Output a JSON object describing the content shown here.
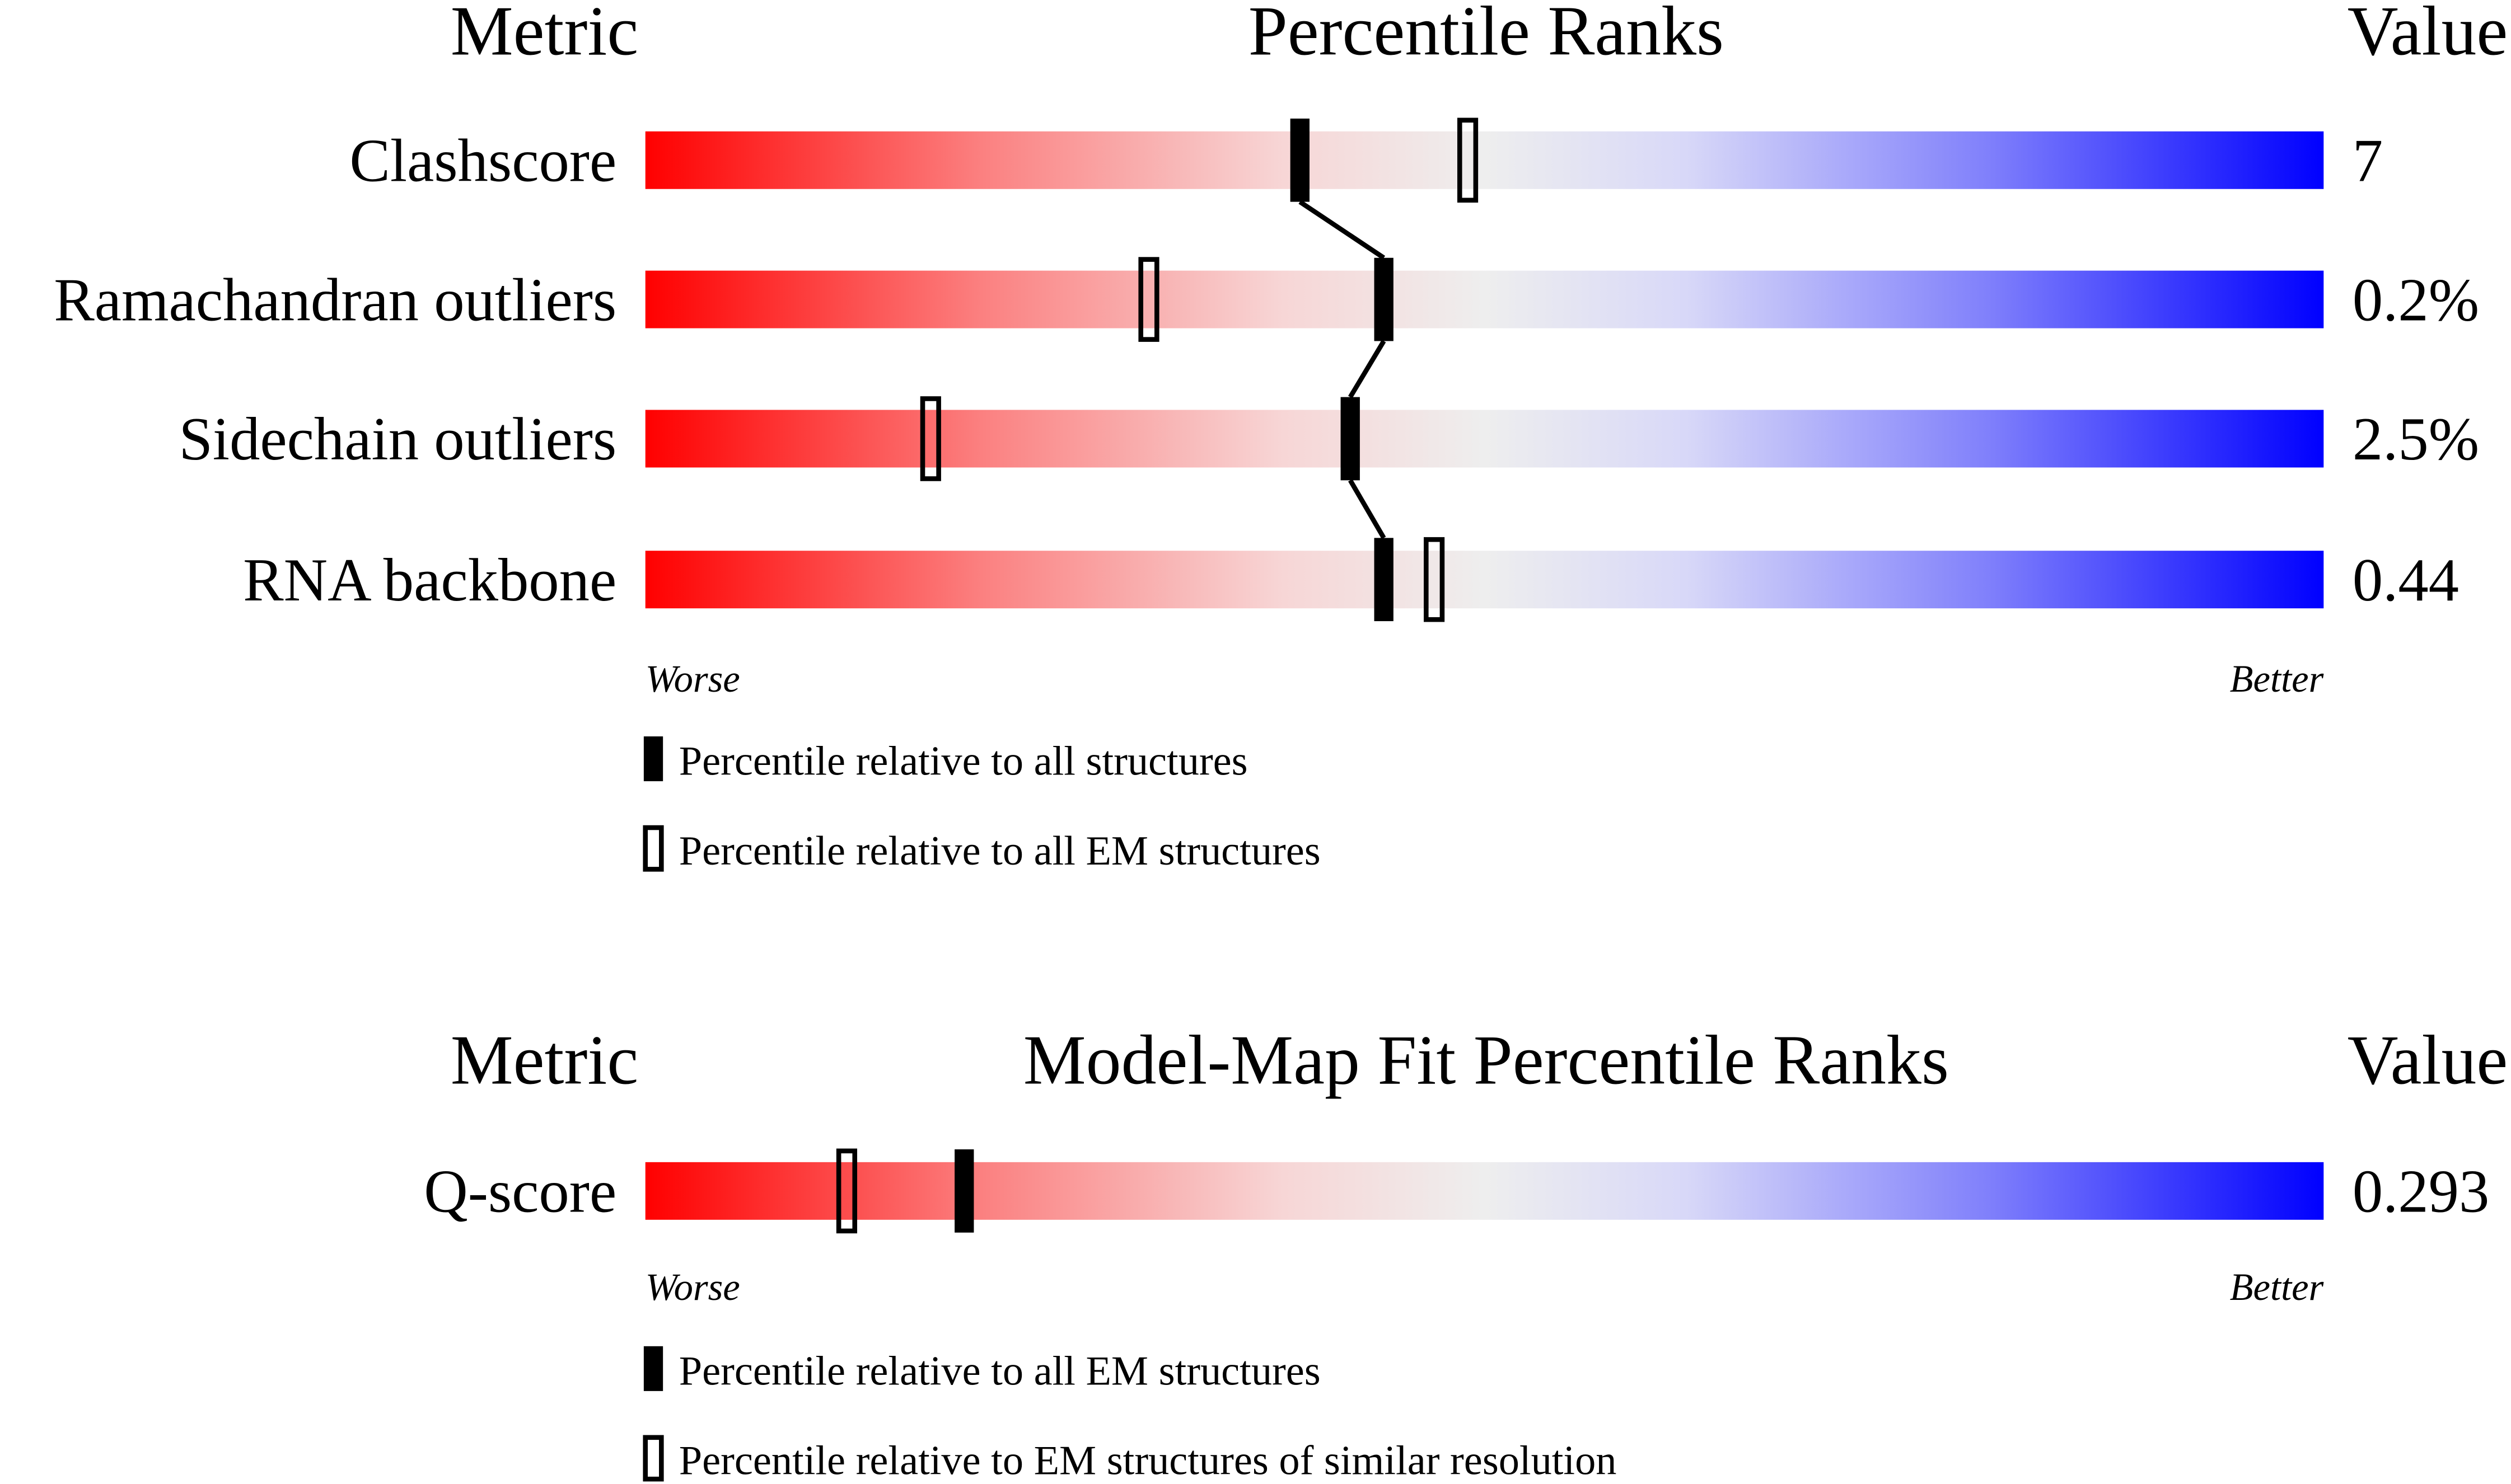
{
  "panels": [
    {
      "header": {
        "metric": "Metric",
        "title": "Percentile Ranks",
        "value": "Value"
      },
      "xlim": [
        0,
        100
      ],
      "rows": [
        {
          "label": "Clashscore",
          "value": "7",
          "filled": 39,
          "open": 49
        },
        {
          "label": "Ramachandran outliers",
          "value": "0.2%",
          "filled": 44,
          "open": 30
        },
        {
          "label": "Sidechain outliers",
          "value": "2.5%",
          "filled": 42,
          "open": 17
        },
        {
          "label": "RNA backbone",
          "value": "0.44",
          "filled": 44,
          "open": 47
        }
      ],
      "worse": "Worse",
      "better": "Better",
      "legend": {
        "filled": "Percentile relative to all structures",
        "open": "Percentile relative to all EM structures"
      }
    },
    {
      "header": {
        "metric": "Metric",
        "title": "Model-Map Fit Percentile Ranks",
        "value": "Value"
      },
      "xlim": [
        0,
        100
      ],
      "rows": [
        {
          "label": "Q-score",
          "value": "0.293",
          "filled": 19,
          "open": 12
        }
      ],
      "worse": "Worse",
      "better": "Better",
      "legend": {
        "filled": "Percentile relative to all EM structures",
        "open": "Percentile relative to EM structures of similar resolution"
      }
    }
  ]
}
